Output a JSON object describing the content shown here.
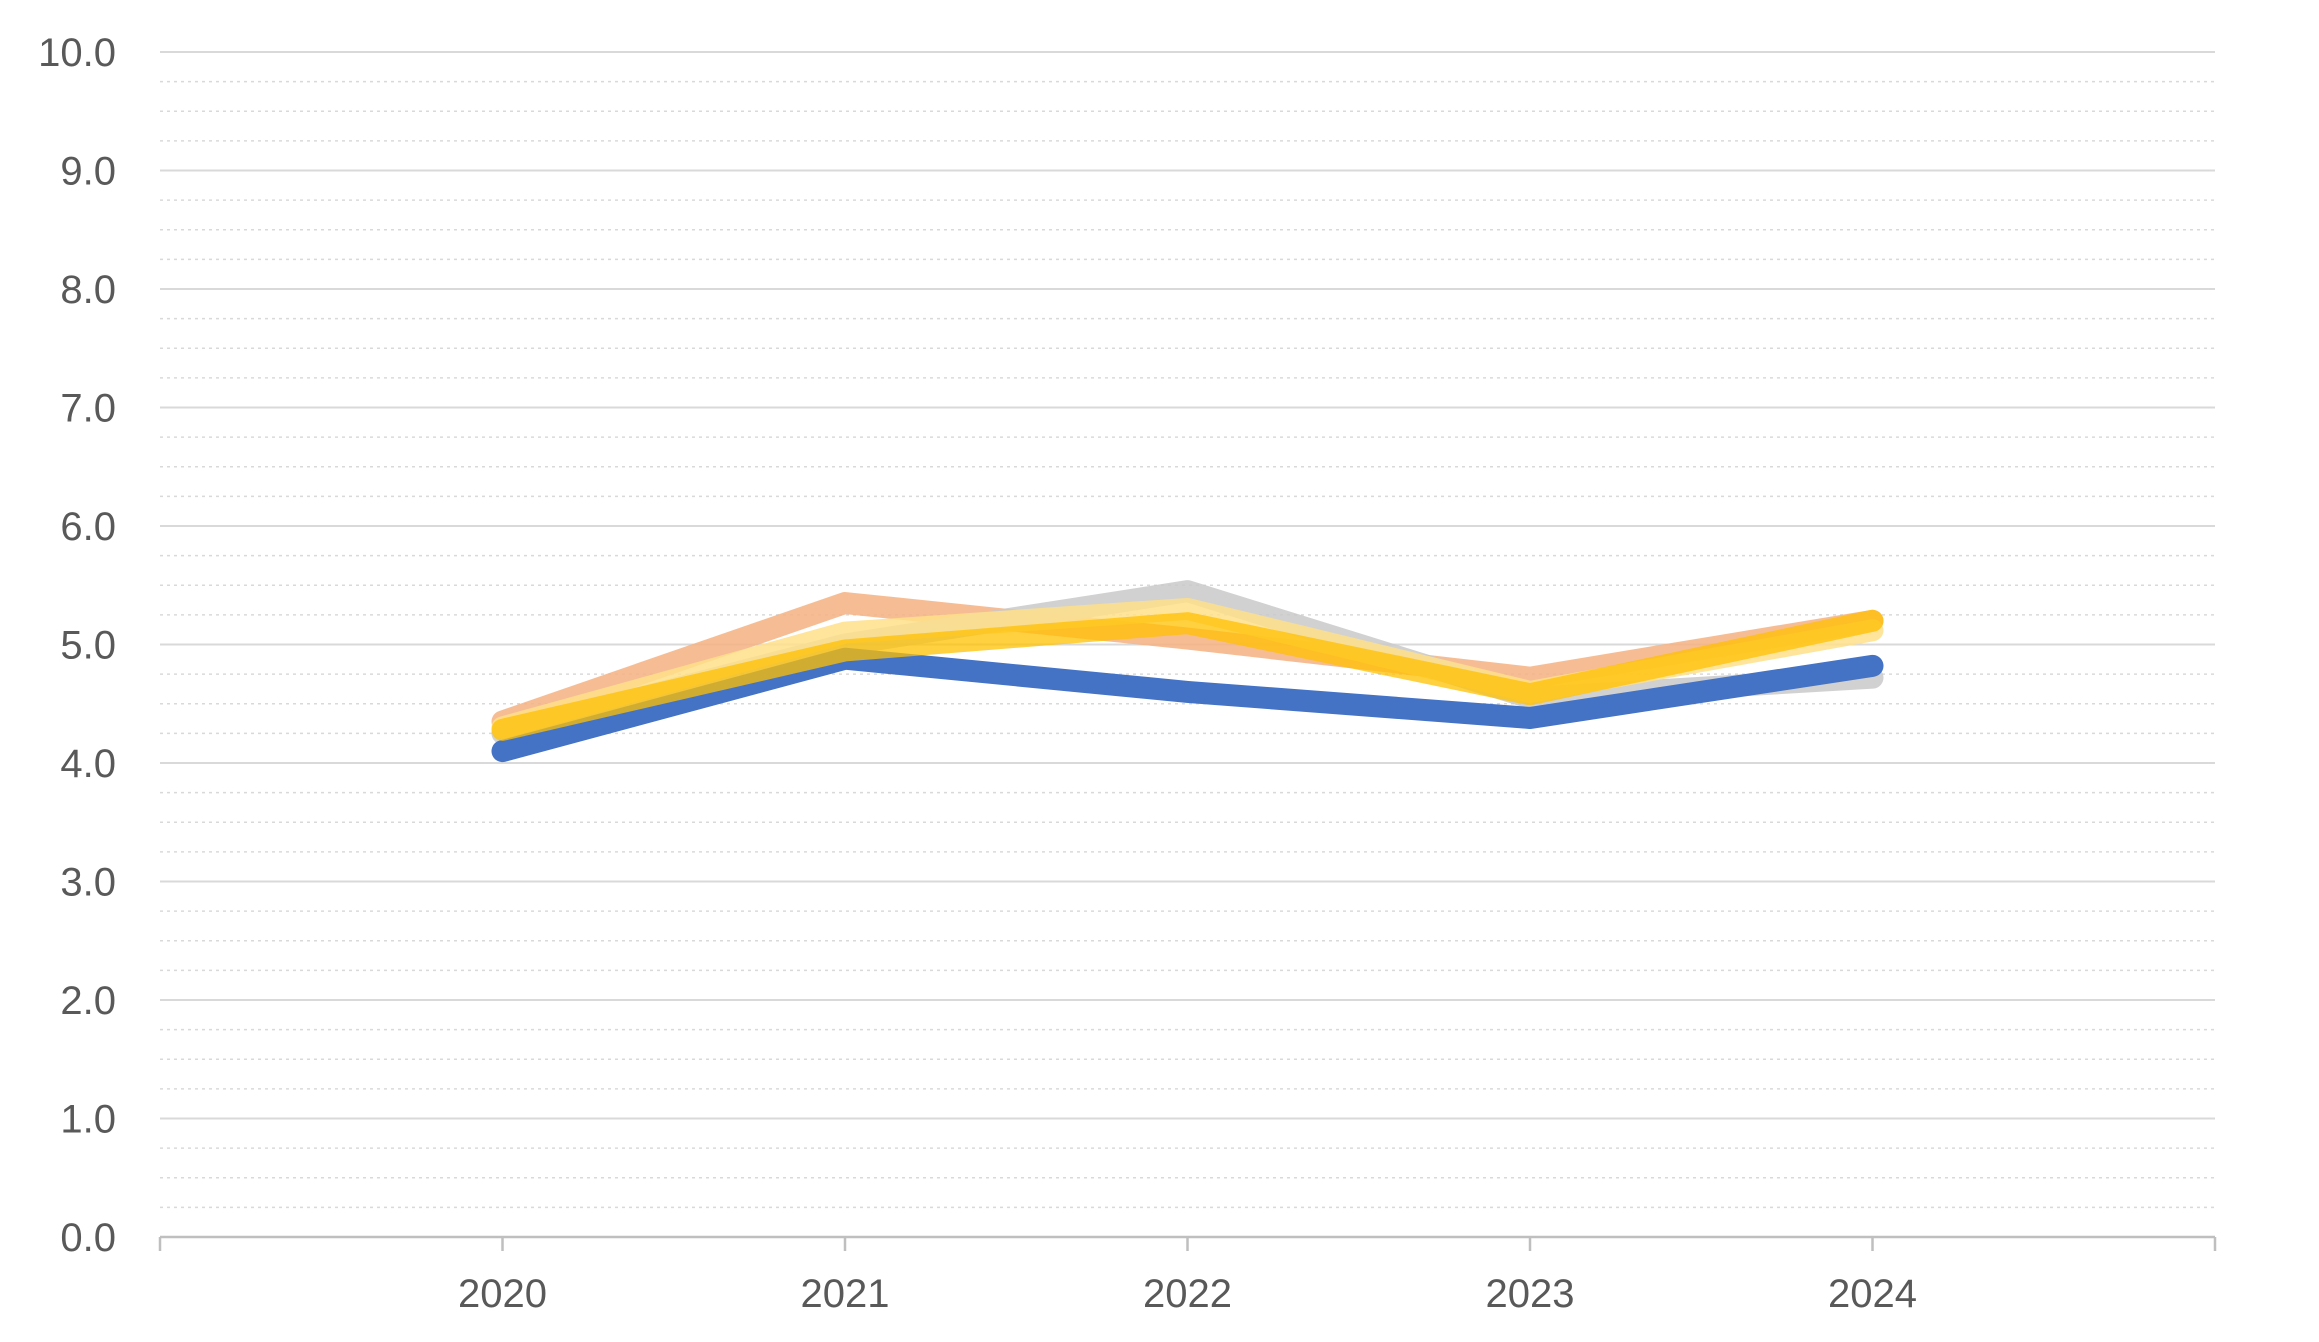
{
  "chart_data": {
    "type": "line",
    "title": "",
    "xlabel": "",
    "ylabel": "",
    "categories": [
      "2020",
      "2021",
      "2022",
      "2023",
      "2024"
    ],
    "ylim": [
      0,
      10
    ],
    "y_major_step": 1,
    "y_minor_step": 0.25,
    "y_tick_labels": [
      "0.0",
      "1.0",
      "2.0",
      "3.0",
      "4.0",
      "5.0",
      "6.0",
      "7.0",
      "8.0",
      "9.0",
      "10.0"
    ],
    "grid": {
      "major": true,
      "minor": true
    },
    "legend": "none",
    "series": [
      {
        "values": [
          4.35,
          5.35,
          5.05,
          4.72,
          5.2
        ],
        "color": "#F4B183",
        "opacity": 0.85
      },
      {
        "values": [
          4.25,
          5.0,
          5.45,
          4.55,
          4.72
        ],
        "color": "#C9C9C9",
        "opacity": 0.85
      },
      {
        "values": [
          4.3,
          5.1,
          5.3,
          4.6,
          5.12
        ],
        "color": "#FFE08A",
        "opacity": 0.85
      },
      {
        "values": [
          4.1,
          4.88,
          4.6,
          4.38,
          4.82
        ],
        "color": "#4472C4",
        "opacity": 1.0
      },
      {
        "values": [
          4.28,
          4.95,
          5.18,
          4.58,
          5.2
        ],
        "color": "#FFC000",
        "opacity": 0.75
      }
    ]
  }
}
